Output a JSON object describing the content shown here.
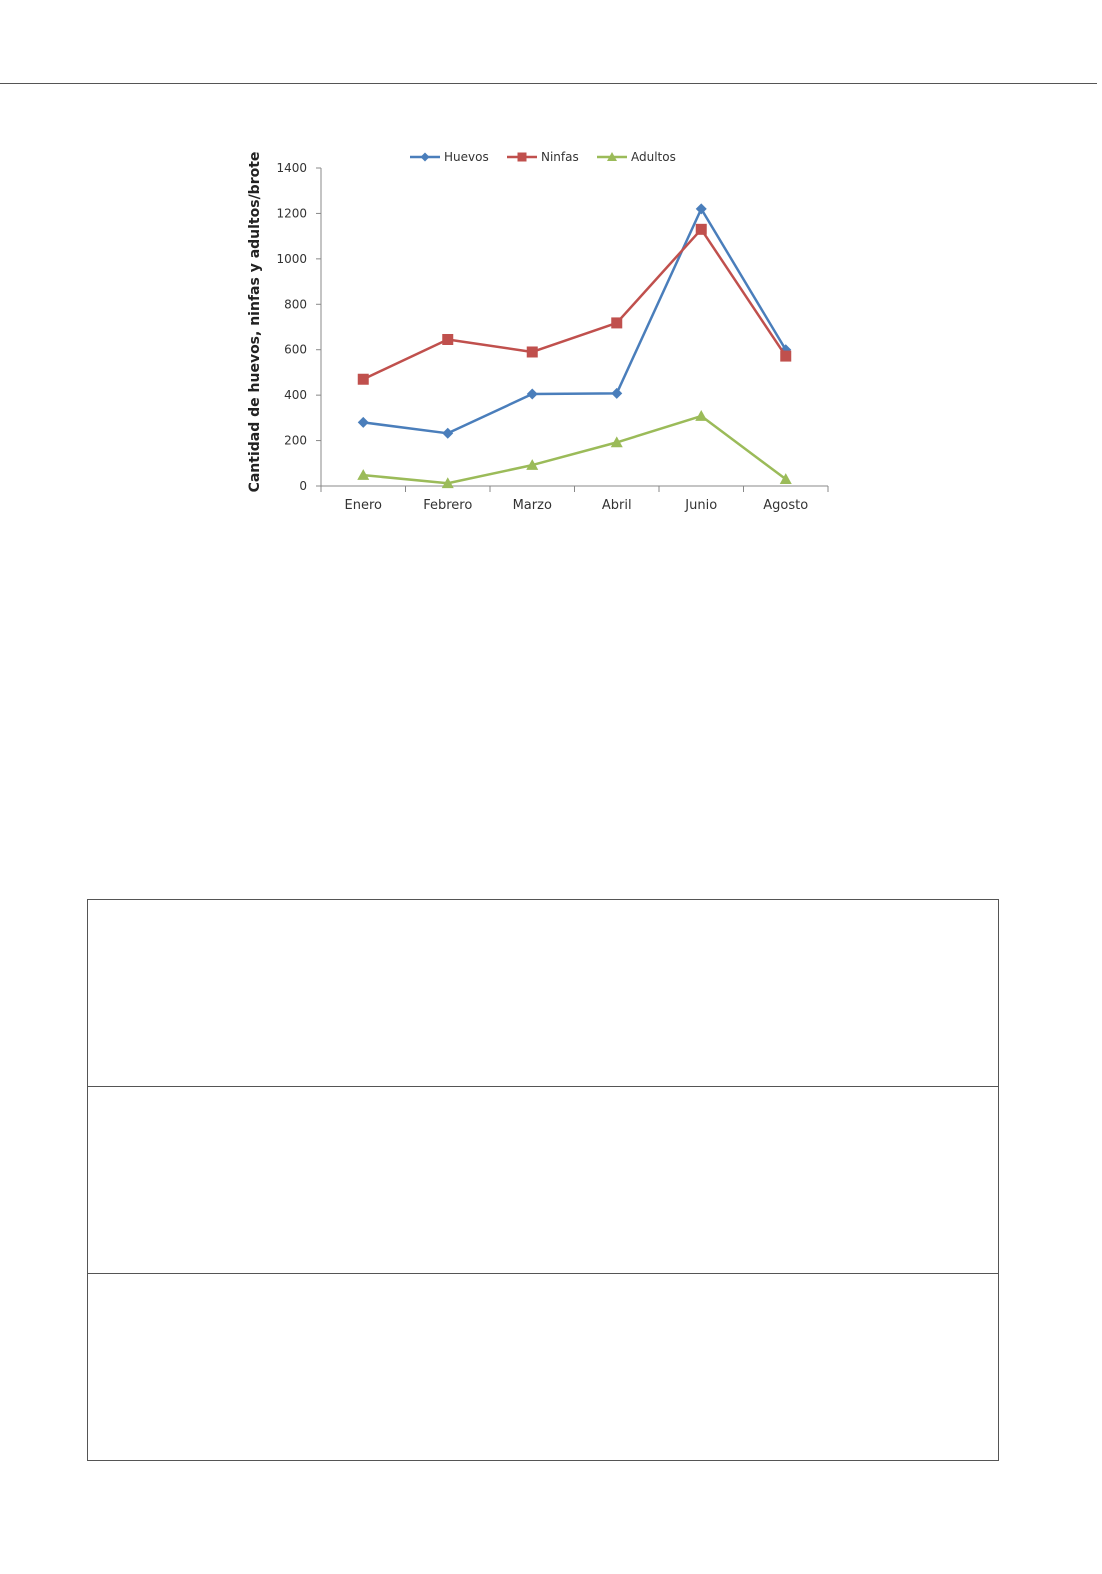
{
  "chart_data": {
    "type": "line",
    "title": "",
    "xlabel": "",
    "ylabel": "Cantidad de huevos, ninfas y adultos/brote",
    "categories": [
      "Enero",
      "Febrero",
      "Marzo",
      "Abril",
      "Junio",
      "Agosto"
    ],
    "ylim": [
      0,
      1400
    ],
    "yticks": [
      0,
      200,
      400,
      600,
      800,
      1000,
      1200,
      1400
    ],
    "legend_position": "top",
    "grid": false,
    "series": [
      {
        "name": "Huevos",
        "color": "#4a7ebb",
        "marker": "diamond",
        "values": [
          280,
          232,
          405,
          408,
          1220,
          600
        ]
      },
      {
        "name": "Ninfas",
        "color": "#c0504d",
        "marker": "square",
        "values": [
          470,
          645,
          590,
          718,
          1130,
          572
        ]
      },
      {
        "name": "Adultos",
        "color": "#9bbb59",
        "marker": "triangle",
        "values": [
          48,
          12,
          92,
          192,
          308,
          30
        ]
      }
    ]
  },
  "answer_box": {
    "rows": 3
  }
}
